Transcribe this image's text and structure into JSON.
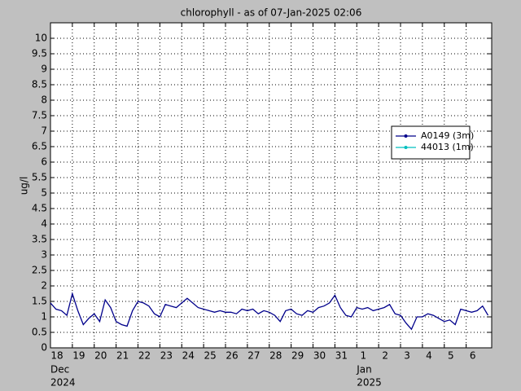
{
  "chart_data": {
    "type": "line",
    "title": "chlorophyll - as of 07-Jan-2025 02:06",
    "ylabel": "ug/l",
    "ylim": [
      0,
      10.5
    ],
    "yticks": [
      0,
      0.5,
      1,
      1.5,
      2,
      2.5,
      3,
      3.5,
      4,
      4.5,
      5,
      5.5,
      6,
      6.5,
      7,
      7.5,
      8,
      8.5,
      9,
      9.5,
      10
    ],
    "xlim": [
      "2024-12-18T00:00",
      "2025-01-07T04:00"
    ],
    "xticks": [
      {
        "value": "2024-12-18T00:00",
        "label": "18"
      },
      {
        "value": "2024-12-19T00:00",
        "label": "19"
      },
      {
        "value": "2024-12-20T00:00",
        "label": "20"
      },
      {
        "value": "2024-12-21T00:00",
        "label": "21"
      },
      {
        "value": "2024-12-22T00:00",
        "label": "22"
      },
      {
        "value": "2024-12-23T00:00",
        "label": "23"
      },
      {
        "value": "2024-12-24T00:00",
        "label": "24"
      },
      {
        "value": "2024-12-25T00:00",
        "label": "25"
      },
      {
        "value": "2024-12-26T00:00",
        "label": "26"
      },
      {
        "value": "2024-12-27T00:00",
        "label": "27"
      },
      {
        "value": "2024-12-28T00:00",
        "label": "28"
      },
      {
        "value": "2024-12-29T00:00",
        "label": "29"
      },
      {
        "value": "2024-12-30T00:00",
        "label": "30"
      },
      {
        "value": "2024-12-31T00:00",
        "label": "31"
      },
      {
        "value": "2025-01-01T00:00",
        "label": "1"
      },
      {
        "value": "2025-01-02T00:00",
        "label": "2"
      },
      {
        "value": "2025-01-03T00:00",
        "label": "3"
      },
      {
        "value": "2025-01-04T00:00",
        "label": "4"
      },
      {
        "value": "2025-01-05T00:00",
        "label": "5"
      },
      {
        "value": "2025-01-06T00:00",
        "label": "6"
      }
    ],
    "x_month_labels": [
      {
        "value": "2024-12-18T00:00",
        "label": "Dec",
        "year": "2024"
      },
      {
        "value": "2025-01-01T00:00",
        "label": "Jan",
        "year": "2025"
      }
    ],
    "grid": true,
    "legend_loc": "right",
    "x": [
      "2024-12-18T00:00",
      "2024-12-18T06:00",
      "2024-12-18T12:00",
      "2024-12-18T18:00",
      "2024-12-19T00:00",
      "2024-12-19T06:00",
      "2024-12-19T12:00",
      "2024-12-19T18:00",
      "2024-12-20T00:00",
      "2024-12-20T06:00",
      "2024-12-20T12:00",
      "2024-12-20T18:00",
      "2024-12-21T00:00",
      "2024-12-21T06:00",
      "2024-12-21T12:00",
      "2024-12-21T18:00",
      "2024-12-22T00:00",
      "2024-12-22T06:00",
      "2024-12-22T12:00",
      "2024-12-22T18:00",
      "2024-12-23T00:00",
      "2024-12-23T06:00",
      "2024-12-23T12:00",
      "2024-12-23T18:00",
      "2024-12-24T00:00",
      "2024-12-24T06:00",
      "2024-12-24T12:00",
      "2024-12-24T18:00",
      "2024-12-25T00:00",
      "2024-12-25T06:00",
      "2024-12-25T12:00",
      "2024-12-25T18:00",
      "2024-12-26T00:00",
      "2024-12-26T06:00",
      "2024-12-26T12:00",
      "2024-12-26T18:00",
      "2024-12-27T00:00",
      "2024-12-27T06:00",
      "2024-12-27T12:00",
      "2024-12-27T18:00",
      "2024-12-28T00:00",
      "2024-12-28T06:00",
      "2024-12-28T12:00",
      "2024-12-28T18:00",
      "2024-12-29T00:00",
      "2024-12-29T06:00",
      "2024-12-29T12:00",
      "2024-12-29T18:00",
      "2024-12-30T00:00",
      "2024-12-30T06:00",
      "2024-12-30T12:00",
      "2024-12-30T18:00",
      "2024-12-31T00:00",
      "2024-12-31T06:00",
      "2024-12-31T12:00",
      "2024-12-31T18:00",
      "2025-01-01T00:00",
      "2025-01-01T06:00",
      "2025-01-01T12:00",
      "2025-01-01T18:00",
      "2025-01-02T00:00",
      "2025-01-02T06:00",
      "2025-01-02T12:00",
      "2025-01-02T18:00",
      "2025-01-03T00:00",
      "2025-01-03T06:00",
      "2025-01-03T12:00",
      "2025-01-03T18:00",
      "2025-01-04T00:00",
      "2025-01-04T06:00",
      "2025-01-04T12:00",
      "2025-01-04T18:00",
      "2025-01-05T00:00",
      "2025-01-05T06:00",
      "2025-01-05T12:00",
      "2025-01-05T18:00",
      "2025-01-06T00:00",
      "2025-01-06T06:00",
      "2025-01-06T12:00",
      "2025-01-06T18:00",
      "2025-01-07T00:00"
    ],
    "series": [
      {
        "name": "A0149 (3m)",
        "color": "#00008b",
        "values": [
          1.45,
          1.25,
          1.2,
          1.05,
          1.75,
          1.2,
          0.75,
          0.95,
          1.1,
          0.85,
          1.55,
          1.3,
          0.85,
          0.75,
          0.7,
          1.2,
          1.5,
          1.45,
          1.35,
          1.1,
          1.0,
          1.4,
          1.35,
          1.3,
          1.45,
          1.6,
          1.45,
          1.3,
          1.25,
          1.2,
          1.15,
          1.2,
          1.15,
          1.15,
          1.1,
          1.25,
          1.2,
          1.25,
          1.1,
          1.2,
          1.15,
          1.05,
          0.85,
          1.2,
          1.25,
          1.1,
          1.05,
          1.2,
          1.15,
          1.3,
          1.35,
          1.45,
          1.7,
          1.3,
          1.05,
          1.0,
          1.3,
          1.25,
          1.3,
          1.2,
          1.25,
          1.3,
          1.4,
          1.1,
          1.05,
          0.8,
          0.6,
          1.0,
          1.0,
          1.1,
          1.05,
          0.95,
          0.85,
          0.9,
          0.75,
          1.25,
          1.2,
          1.15,
          1.2,
          1.35,
          1.05
        ]
      },
      {
        "name": "44013 (1m)",
        "color": "#00bfbf",
        "values": [
          null,
          null,
          null,
          null,
          null,
          null,
          null,
          null,
          null,
          null,
          null,
          null,
          null,
          null,
          null,
          null,
          null,
          null,
          null,
          null,
          null,
          null,
          null,
          null,
          null,
          null,
          null,
          null,
          null,
          null,
          null,
          null,
          null,
          null,
          null,
          null,
          null,
          null,
          null,
          null,
          null,
          null,
          null,
          null,
          null,
          null,
          null,
          null,
          null,
          null,
          null,
          null,
          null,
          null,
          null,
          null,
          null,
          null,
          null,
          null,
          null,
          null,
          null,
          null,
          null,
          null,
          null,
          null,
          null,
          null,
          null,
          null,
          null,
          null,
          null,
          null,
          null,
          null,
          null,
          null,
          null
        ]
      }
    ]
  }
}
